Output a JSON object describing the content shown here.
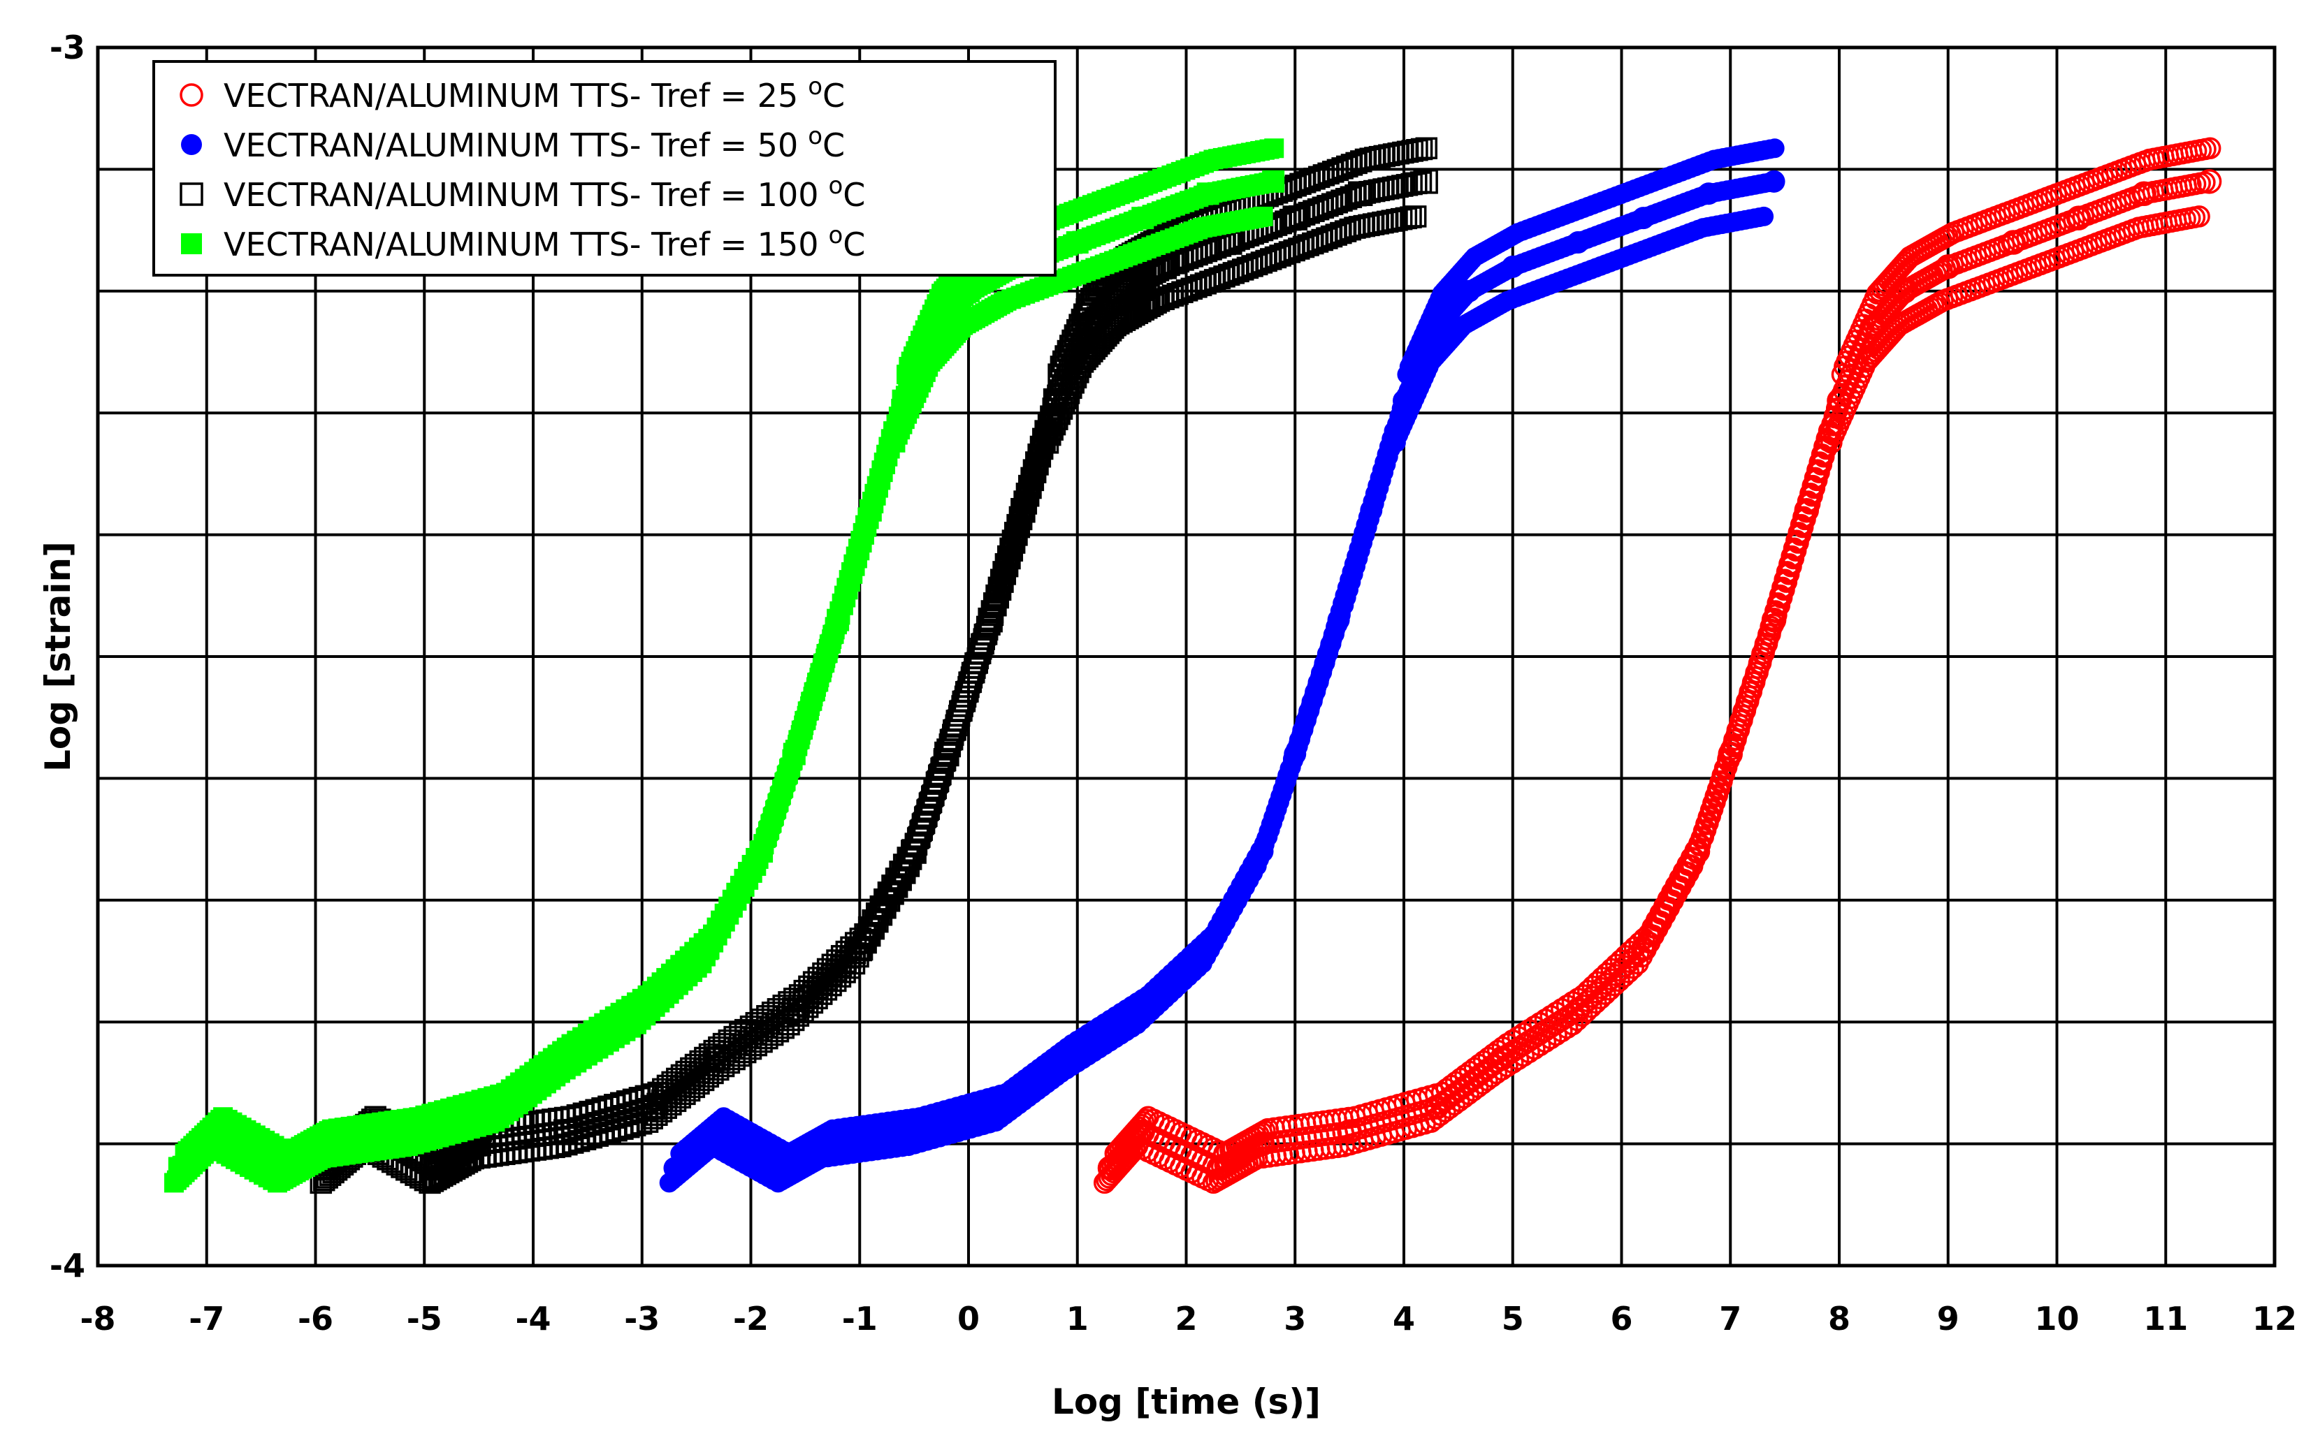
{
  "chart_data": {
    "type": "scatter",
    "title": "",
    "xlabel": "Log [time (s)]",
    "ylabel": "Log [strain]",
    "xlim": [
      -8,
      12
    ],
    "ylim": [
      -4,
      -3
    ],
    "x_ticks": [
      "-8",
      "-7",
      "-6",
      "-5",
      "-4",
      "-3",
      "-2",
      "-1",
      "0",
      "1",
      "2",
      "3",
      "4",
      "5",
      "6",
      "7",
      "8",
      "9",
      "10",
      "11",
      "12"
    ],
    "y_ticks": [
      "-3",
      "-4"
    ],
    "grid": true,
    "legend_position": "top-left",
    "series": [
      {
        "name": "VECTRAN/ALUMINUM TTS- Tref = 25",
        "unit_sup": "o",
        "unit": "C",
        "color": "#ff0000",
        "marker": "open-circle",
        "points": [
          [
            1.3,
            -3.92
          ],
          [
            1.6,
            -3.89
          ],
          [
            2.3,
            -3.92
          ],
          [
            2.7,
            -3.9
          ],
          [
            3.5,
            -3.89
          ],
          [
            4.3,
            -3.87
          ],
          [
            4.9,
            -3.83
          ],
          [
            5.6,
            -3.79
          ],
          [
            6.2,
            -3.74
          ],
          [
            6.7,
            -3.66
          ],
          [
            7.0,
            -3.58
          ],
          [
            7.4,
            -3.47
          ],
          [
            7.7,
            -3.38
          ],
          [
            8.0,
            -3.29
          ],
          [
            8.3,
            -3.23
          ],
          [
            8.6,
            -3.2
          ],
          [
            9.0,
            -3.18
          ],
          [
            9.6,
            -3.16
          ],
          [
            10.2,
            -3.14
          ],
          [
            10.8,
            -3.12
          ],
          [
            11.4,
            -3.11
          ]
        ]
      },
      {
        "name": "VECTRAN/ALUMINUM TTS- Tref = 50",
        "unit_sup": "o",
        "unit": "C",
        "color": "#0000ff",
        "marker": "filled-circle",
        "points": [
          [
            -2.7,
            -3.92
          ],
          [
            -2.3,
            -3.89
          ],
          [
            -1.7,
            -3.92
          ],
          [
            -1.3,
            -3.9
          ],
          [
            -0.5,
            -3.89
          ],
          [
            0.3,
            -3.87
          ],
          [
            0.9,
            -3.83
          ],
          [
            1.6,
            -3.79
          ],
          [
            2.2,
            -3.74
          ],
          [
            2.7,
            -3.66
          ],
          [
            3.0,
            -3.58
          ],
          [
            3.4,
            -3.47
          ],
          [
            3.7,
            -3.38
          ],
          [
            4.0,
            -3.29
          ],
          [
            4.3,
            -3.23
          ],
          [
            4.6,
            -3.2
          ],
          [
            5.0,
            -3.18
          ],
          [
            5.6,
            -3.16
          ],
          [
            6.2,
            -3.14
          ],
          [
            6.8,
            -3.12
          ],
          [
            7.4,
            -3.11
          ]
        ]
      },
      {
        "name": "VECTRAN/ALUMINUM TTS- Tref = 100",
        "unit_sup": "o",
        "unit": "C",
        "color": "#000000",
        "marker": "open-square",
        "points": [
          [
            -5.9,
            -3.92
          ],
          [
            -5.5,
            -3.89
          ],
          [
            -4.9,
            -3.92
          ],
          [
            -4.5,
            -3.9
          ],
          [
            -3.7,
            -3.89
          ],
          [
            -2.9,
            -3.87
          ],
          [
            -2.3,
            -3.83
          ],
          [
            -1.6,
            -3.79
          ],
          [
            -1.0,
            -3.74
          ],
          [
            -0.5,
            -3.66
          ],
          [
            -0.2,
            -3.58
          ],
          [
            0.2,
            -3.47
          ],
          [
            0.5,
            -3.38
          ],
          [
            0.8,
            -3.29
          ],
          [
            1.1,
            -3.23
          ],
          [
            1.4,
            -3.2
          ],
          [
            1.8,
            -3.18
          ],
          [
            2.4,
            -3.16
          ],
          [
            3.0,
            -3.14
          ],
          [
            3.6,
            -3.12
          ],
          [
            4.2,
            -3.11
          ]
        ]
      },
      {
        "name": "VECTRAN/ALUMINUM TTS- Tref = 150",
        "unit_sup": "o",
        "unit": "C",
        "color": "#00ff00",
        "marker": "filled-square",
        "points": [
          [
            -7.25,
            -3.92
          ],
          [
            -6.9,
            -3.89
          ],
          [
            -6.3,
            -3.92
          ],
          [
            -5.9,
            -3.9
          ],
          [
            -5.1,
            -3.89
          ],
          [
            -4.3,
            -3.87
          ],
          [
            -3.7,
            -3.83
          ],
          [
            -3.0,
            -3.79
          ],
          [
            -2.4,
            -3.74
          ],
          [
            -1.9,
            -3.66
          ],
          [
            -1.6,
            -3.58
          ],
          [
            -1.2,
            -3.47
          ],
          [
            -0.9,
            -3.38
          ],
          [
            -0.6,
            -3.29
          ],
          [
            -0.3,
            -3.23
          ],
          [
            0.0,
            -3.2
          ],
          [
            0.4,
            -3.18
          ],
          [
            1.0,
            -3.16
          ],
          [
            1.6,
            -3.14
          ],
          [
            2.2,
            -3.12
          ],
          [
            2.8,
            -3.11
          ]
        ]
      }
    ]
  }
}
